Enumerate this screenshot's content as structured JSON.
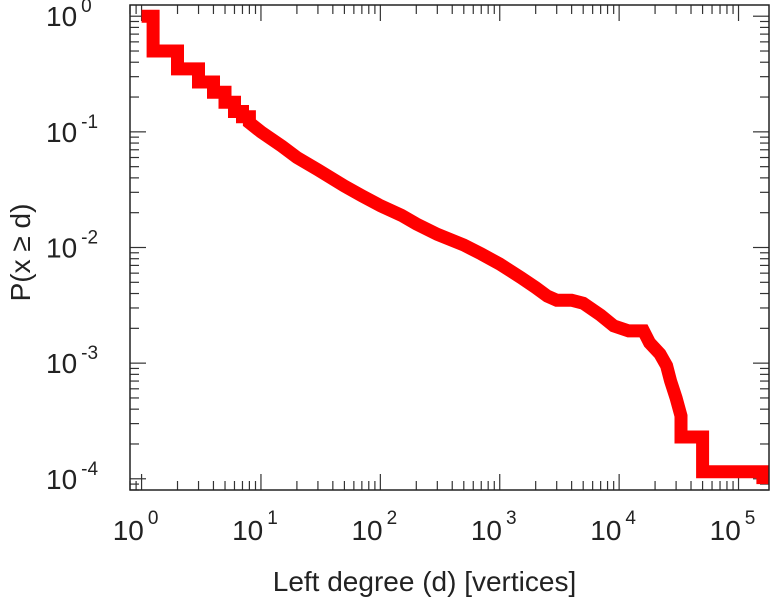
{
  "chart_data": {
    "type": "line",
    "xlabel": "Left degree (d) [vertices]",
    "ylabel": "P(x ≥ d)",
    "xscale": "log",
    "yscale": "log",
    "xlim": [
      0.8,
      180000
    ],
    "ylim": [
      8e-05,
      1.25
    ],
    "grid": false,
    "legend": "none",
    "line_color": "#ff0000",
    "x_ticks": [
      {
        "base": "10",
        "exp": "0",
        "value": 1
      },
      {
        "base": "10",
        "exp": "1",
        "value": 10
      },
      {
        "base": "10",
        "exp": "2",
        "value": 100
      },
      {
        "base": "10",
        "exp": "3",
        "value": 1000
      },
      {
        "base": "10",
        "exp": "4",
        "value": 10000
      },
      {
        "base": "10",
        "exp": "5",
        "value": 100000
      }
    ],
    "y_ticks": [
      {
        "base": "10",
        "exp": "0",
        "value": 1
      },
      {
        "base": "10",
        "exp": "-1",
        "value": 0.1
      },
      {
        "base": "10",
        "exp": "-2",
        "value": 0.01
      },
      {
        "base": "10",
        "exp": "-3",
        "value": 0.001
      },
      {
        "base": "10",
        "exp": "-4",
        "value": 0.0001
      }
    ],
    "series": [
      {
        "points": [
          [
            1,
            1.0
          ],
          [
            1.25,
            1.0
          ],
          [
            1.25,
            0.5
          ],
          [
            2,
            0.5
          ],
          [
            2,
            0.35
          ],
          [
            3,
            0.35
          ],
          [
            3,
            0.27
          ],
          [
            4,
            0.27
          ],
          [
            4,
            0.22
          ],
          [
            5,
            0.22
          ],
          [
            5,
            0.18
          ],
          [
            6,
            0.18
          ],
          [
            6,
            0.15
          ],
          [
            7,
            0.15
          ],
          [
            7,
            0.135
          ],
          [
            8,
            0.135
          ],
          [
            8,
            0.12
          ],
          [
            10,
            0.1
          ],
          [
            15,
            0.075
          ],
          [
            20,
            0.06
          ],
          [
            30,
            0.047
          ],
          [
            50,
            0.034
          ],
          [
            70,
            0.028
          ],
          [
            100,
            0.023
          ],
          [
            150,
            0.019
          ],
          [
            200,
            0.016
          ],
          [
            300,
            0.013
          ],
          [
            500,
            0.0105
          ],
          [
            700,
            0.0088
          ],
          [
            1000,
            0.0072
          ],
          [
            1500,
            0.0055
          ],
          [
            2000,
            0.0045
          ],
          [
            2500,
            0.0038
          ],
          [
            3000,
            0.0035
          ],
          [
            4000,
            0.0035
          ],
          [
            5000,
            0.0033
          ],
          [
            7000,
            0.0026
          ],
          [
            9000,
            0.0021
          ],
          [
            12000,
            0.0019
          ],
          [
            16000,
            0.0019
          ],
          [
            18000,
            0.0015
          ],
          [
            22000,
            0.0012
          ],
          [
            25000,
            0.00095
          ],
          [
            27000,
            0.0007
          ],
          [
            30000,
            0.0005
          ],
          [
            33000,
            0.00035
          ],
          [
            33000,
            0.00023
          ],
          [
            50000,
            0.00023
          ],
          [
            50000,
            0.000115
          ],
          [
            160000,
            0.000115
          ],
          [
            160000,
            9e-05
          ]
        ]
      }
    ]
  }
}
